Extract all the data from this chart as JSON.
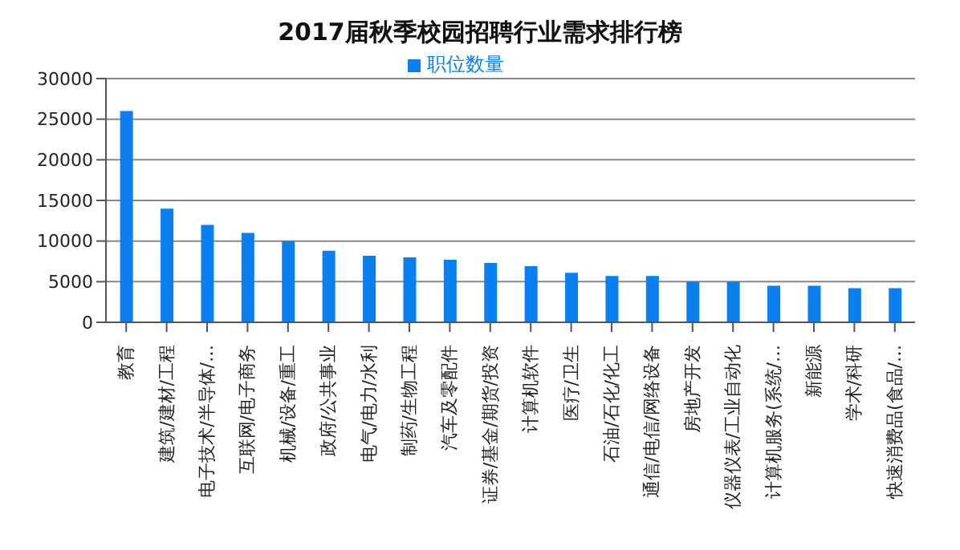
{
  "chart_data": {
    "type": "bar",
    "title": "2017届秋季校园招聘行业需求排行榜",
    "categories": [
      "教育",
      "建筑/建材/工程",
      "电子技术/半导体/…",
      "互联网/电子商务",
      "机械/设备/重工",
      "政府/公共事业",
      "电气/电力/水利",
      "制药/生物工程",
      "汽车及零配件",
      "证券/基金/期货/投资",
      "计算机软件",
      "医疗/卫生",
      "石油/石化/化工",
      "通信/电信/网络设备",
      "房地产开发",
      "仪器仪表/工业自动化",
      "计算机服务(系统/…",
      "新能源",
      "学术/科研",
      "快速消费品(食品/…"
    ],
    "series": [
      {
        "name": "职位数量",
        "color": "#0a7ff0",
        "values": [
          26000,
          14000,
          12000,
          11000,
          10000,
          8800,
          8200,
          8000,
          7700,
          7300,
          6900,
          6100,
          5700,
          5700,
          5000,
          5000,
          4500,
          4500,
          4200,
          4200
        ]
      }
    ],
    "ylim": [
      0,
      30000
    ],
    "yticks": [
      0,
      5000,
      10000,
      15000,
      20000,
      25000,
      30000
    ],
    "grid": "y",
    "legend": "top"
  }
}
